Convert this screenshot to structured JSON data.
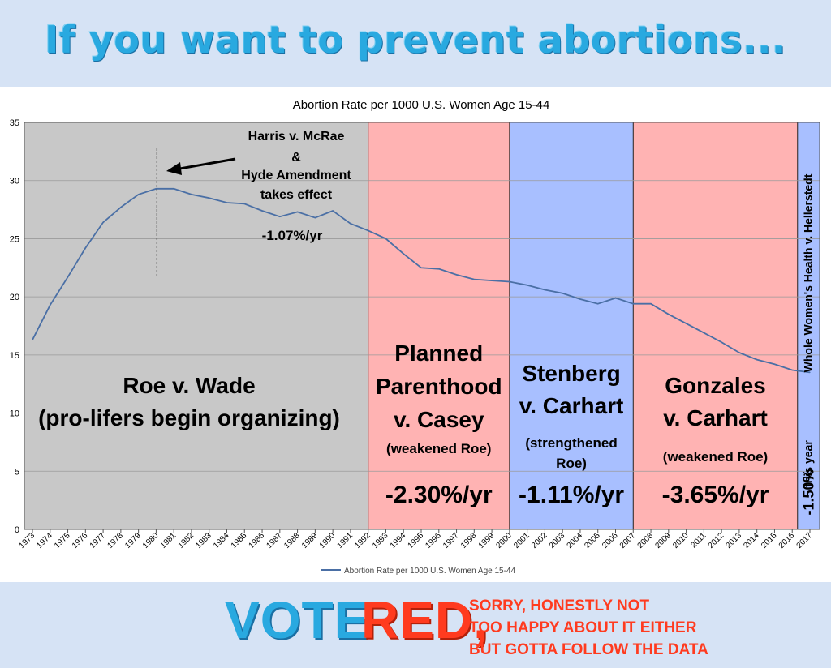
{
  "headline": "If you want to prevent abortions...",
  "footer": {
    "vote": "VOTE",
    "red": "RED,",
    "note_lines": [
      "SORRY, HONESTLY NOT",
      "TOO HAPPY ABOUT IT EITHER",
      "BUT GOTTA FOLLOW THE DATA"
    ]
  },
  "colors": {
    "gray_region": "#c8c8c8",
    "red_region": "#ffb3b3",
    "blue_region": "#a8bfff",
    "line": "#4a6fa5",
    "headline": "#29a9e0",
    "red_text": "#ff3b1f"
  },
  "chart_data": {
    "type": "line",
    "title": "Abortion Rate per 1000 U.S. Women Age 15-44",
    "legend": "Abortion Rate per 1000 U.S. Women Age 15-44",
    "legend_position": "bottom",
    "xlabel": "",
    "ylabel": "",
    "ylim": [
      0,
      35
    ],
    "yticks": [
      0,
      5,
      10,
      15,
      20,
      25,
      30,
      35
    ],
    "grid": true,
    "x": [
      1973,
      1974,
      1975,
      1976,
      1977,
      1978,
      1979,
      1980,
      1981,
      1982,
      1983,
      1984,
      1985,
      1986,
      1987,
      1988,
      1989,
      1990,
      1991,
      1992,
      1993,
      1994,
      1995,
      1996,
      1997,
      1998,
      1999,
      2000,
      2001,
      2002,
      2003,
      2004,
      2005,
      2006,
      2007,
      2008,
      2009,
      2010,
      2011,
      2012,
      2013,
      2014,
      2015,
      2016,
      2017
    ],
    "series": [
      {
        "name": "Abortion Rate per 1000 U.S. Women Age 15-44",
        "values": [
          16.3,
          19.3,
          21.7,
          24.2,
          26.4,
          27.7,
          28.8,
          29.3,
          29.3,
          28.8,
          28.5,
          28.1,
          28.0,
          27.4,
          26.9,
          27.3,
          26.8,
          27.4,
          26.3,
          25.7,
          25.0,
          23.7,
          22.5,
          22.4,
          21.9,
          21.5,
          21.4,
          21.3,
          21.0,
          20.6,
          20.3,
          19.8,
          19.4,
          19.9,
          19.4,
          19.4,
          18.5,
          17.7,
          16.9,
          16.1,
          15.2,
          14.6,
          14.2,
          13.7,
          13.5
        ]
      }
    ],
    "regions": [
      {
        "from": 1973,
        "to": 1992,
        "kind": "gray",
        "lines": [
          "Roe v. Wade",
          "(pro-lifers begin organizing)"
        ]
      },
      {
        "from": 1992,
        "to": 2000,
        "kind": "red",
        "lines": [
          "Planned",
          "Parenthood",
          "v. Casey"
        ],
        "sub": "(weakened Roe)",
        "rate": "-2.30%/yr"
      },
      {
        "from": 2000,
        "to": 2007,
        "kind": "blue",
        "lines": [
          "Stenberg",
          "v. Carhart"
        ],
        "sub_lines": [
          "(strengthened",
          "Roe)"
        ],
        "rate": "-1.11%/yr"
      },
      {
        "from": 2007,
        "to": 2016.3,
        "kind": "red",
        "lines": [
          "Gonzales",
          "v. Carhart"
        ],
        "sub": "(weakened Roe)",
        "rate": "-3.65%/yr"
      },
      {
        "from": 2016.3,
        "to": 2017.5,
        "kind": "blue",
        "vertical_label": "Whole Women's Health v. Hellerstedt",
        "vertical_rate": "-1.50%",
        "vertical_sub": "this year"
      }
    ],
    "annotations": {
      "hyde_lines": [
        "Harris v. McRae",
        "&",
        "Hyde Amendment",
        "takes effect"
      ],
      "hyde_year": 1980,
      "gray_rate": "-1.07%/yr"
    }
  }
}
